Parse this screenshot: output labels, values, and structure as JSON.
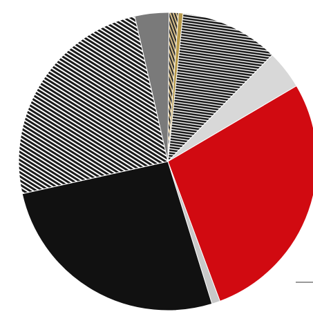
{
  "chart_data": {
    "type": "pie",
    "title": "",
    "legend": "none",
    "slices": [
      {
        "value": 27.8,
        "color": "#d10a11",
        "pattern": "solid"
      },
      {
        "value": 0.9,
        "color": "#c8c8c8",
        "pattern": "solid"
      },
      {
        "value": 26.3,
        "color": "#111111",
        "pattern": "solid"
      },
      {
        "value": 24.9,
        "color": "#1a1a1a",
        "pattern": "hatch-light"
      },
      {
        "value": 3.7,
        "color": "#7a7a7a",
        "pattern": "solid"
      },
      {
        "value": 1.0,
        "color": "#2a2a2a",
        "pattern": "hatch-tan"
      },
      {
        "value": 0.5,
        "color": "#b89a4a",
        "pattern": "solid"
      },
      {
        "value": 10.7,
        "color": "#1a1a1a",
        "pattern": "hatch-dense"
      },
      {
        "value": 4.2,
        "color": "#d8d8d8",
        "pattern": "solid"
      }
    ]
  }
}
